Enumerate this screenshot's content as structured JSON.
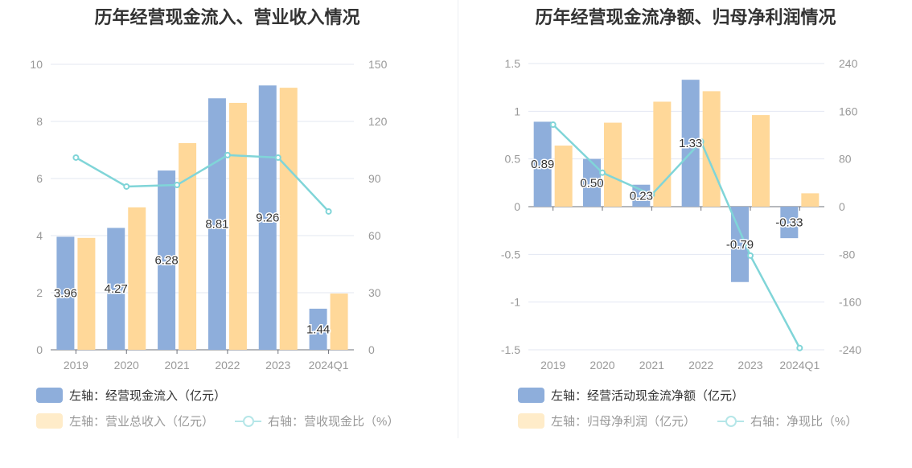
{
  "colors": {
    "bar1": "#8eaedb",
    "bar2": "#ffd899",
    "line": "#80d5d8",
    "grid": "#e3e7f2",
    "axis": "#6e7079",
    "tick": "#999999"
  },
  "chart_data": [
    {
      "type": "bar+line",
      "title": "历年经营现金流入、营业收入情况",
      "categories": [
        "2019",
        "2020",
        "2021",
        "2022",
        "2023",
        "2024Q1"
      ],
      "left_axis": {
        "ylim": [
          0,
          10
        ],
        "ticks": [
          "0",
          "2",
          "4",
          "6",
          "8",
          "10"
        ]
      },
      "right_axis": {
        "ylim": [
          0,
          150
        ],
        "ticks": [
          "0",
          "30",
          "60",
          "90",
          "120",
          "150"
        ]
      },
      "grid": true,
      "legend_placement": "bottom",
      "series": [
        {
          "name": "左轴：经营现金流入（亿元）",
          "type": "bar",
          "axis": "left",
          "values": [
            3.96,
            4.27,
            6.28,
            8.81,
            9.26,
            1.44
          ],
          "labels": [
            "3.96",
            "4.27",
            "6.28",
            "8.81",
            "9.26",
            "1.44"
          ]
        },
        {
          "name": "左轴：营业总收入（亿元）",
          "type": "bar",
          "axis": "left",
          "values": [
            3.92,
            4.99,
            7.24,
            8.65,
            9.18,
            1.97
          ]
        },
        {
          "name": "右轴：营收现金比（%）",
          "type": "line",
          "axis": "right",
          "values": [
            101,
            85.8,
            86.6,
            102.3,
            101,
            72.7
          ]
        }
      ]
    },
    {
      "type": "bar+line",
      "title": "历年经营现金流净额、归母净利润情况",
      "categories": [
        "2019",
        "2020",
        "2021",
        "2022",
        "2023",
        "2024Q1"
      ],
      "left_axis": {
        "ylim": [
          -1.5,
          1.5
        ],
        "ticks": [
          "-1.5",
          "-1",
          "-0.5",
          "0",
          "0.5",
          "1",
          "1.5"
        ]
      },
      "right_axis": {
        "ylim": [
          -240,
          240
        ],
        "ticks": [
          "-240",
          "-160",
          "-80",
          "0",
          "80",
          "160",
          "240"
        ]
      },
      "grid": true,
      "legend_placement": "bottom",
      "series": [
        {
          "name": "左轴：经营活动现金流净额（亿元）",
          "type": "bar",
          "axis": "left",
          "values": [
            0.89,
            0.5,
            0.23,
            1.33,
            -0.79,
            -0.33
          ],
          "labels": [
            "0.89",
            "0.50",
            "0.23",
            "1.33",
            "-0.79",
            "-0.33"
          ]
        },
        {
          "name": "左轴：归母净利润（亿元）",
          "type": "bar",
          "axis": "left",
          "values": [
            0.64,
            0.88,
            1.1,
            1.21,
            0.96,
            0.14
          ]
        },
        {
          "name": "右轴：净现比（%）",
          "type": "line",
          "axis": "right",
          "values": [
            137.5,
            57,
            20,
            109,
            -82,
            -237
          ]
        }
      ]
    }
  ]
}
